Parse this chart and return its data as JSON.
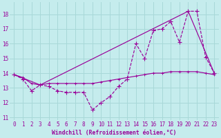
{
  "xlabel": "Windchill (Refroidissement éolien,°C)",
  "background_color": "#c5eced",
  "grid_color": "#a8d8d8",
  "line_color": "#990099",
  "xlim": [
    -0.5,
    23.5
  ],
  "ylim": [
    10.8,
    18.8
  ],
  "yticks": [
    11,
    12,
    13,
    14,
    15,
    16,
    17,
    18
  ],
  "xticks": [
    0,
    1,
    2,
    3,
    4,
    5,
    6,
    7,
    8,
    9,
    10,
    11,
    12,
    13,
    14,
    15,
    16,
    17,
    18,
    19,
    20,
    21,
    22,
    23
  ],
  "series1_x": [
    0,
    1,
    2,
    3,
    4,
    5,
    6,
    7,
    8,
    9,
    10,
    11,
    12,
    13,
    14,
    15,
    16,
    17,
    18,
    19,
    20,
    21,
    22,
    23
  ],
  "series1_y": [
    13.9,
    13.6,
    12.8,
    13.2,
    13.1,
    12.8,
    12.7,
    12.7,
    12.7,
    11.5,
    12.0,
    12.4,
    13.1,
    13.6,
    16.0,
    15.0,
    16.9,
    17.0,
    17.5,
    16.1,
    18.2,
    18.2,
    15.1,
    14.0
  ],
  "series2_x": [
    0,
    3,
    20,
    23
  ],
  "series2_y": [
    13.9,
    13.2,
    18.2,
    14.0
  ],
  "series3_x": [
    0,
    1,
    2,
    3,
    4,
    5,
    6,
    7,
    8,
    9,
    10,
    11,
    12,
    13,
    14,
    15,
    16,
    17,
    18,
    19,
    20,
    21,
    22,
    23
  ],
  "series3_y": [
    13.9,
    13.7,
    13.3,
    13.2,
    13.3,
    13.3,
    13.3,
    13.3,
    13.3,
    13.3,
    13.4,
    13.5,
    13.6,
    13.7,
    13.8,
    13.9,
    14.0,
    14.0,
    14.1,
    14.1,
    14.1,
    14.1,
    14.0,
    13.9
  ],
  "xlabel_fontsize": 5.8,
  "tick_fontsize": 5.5
}
